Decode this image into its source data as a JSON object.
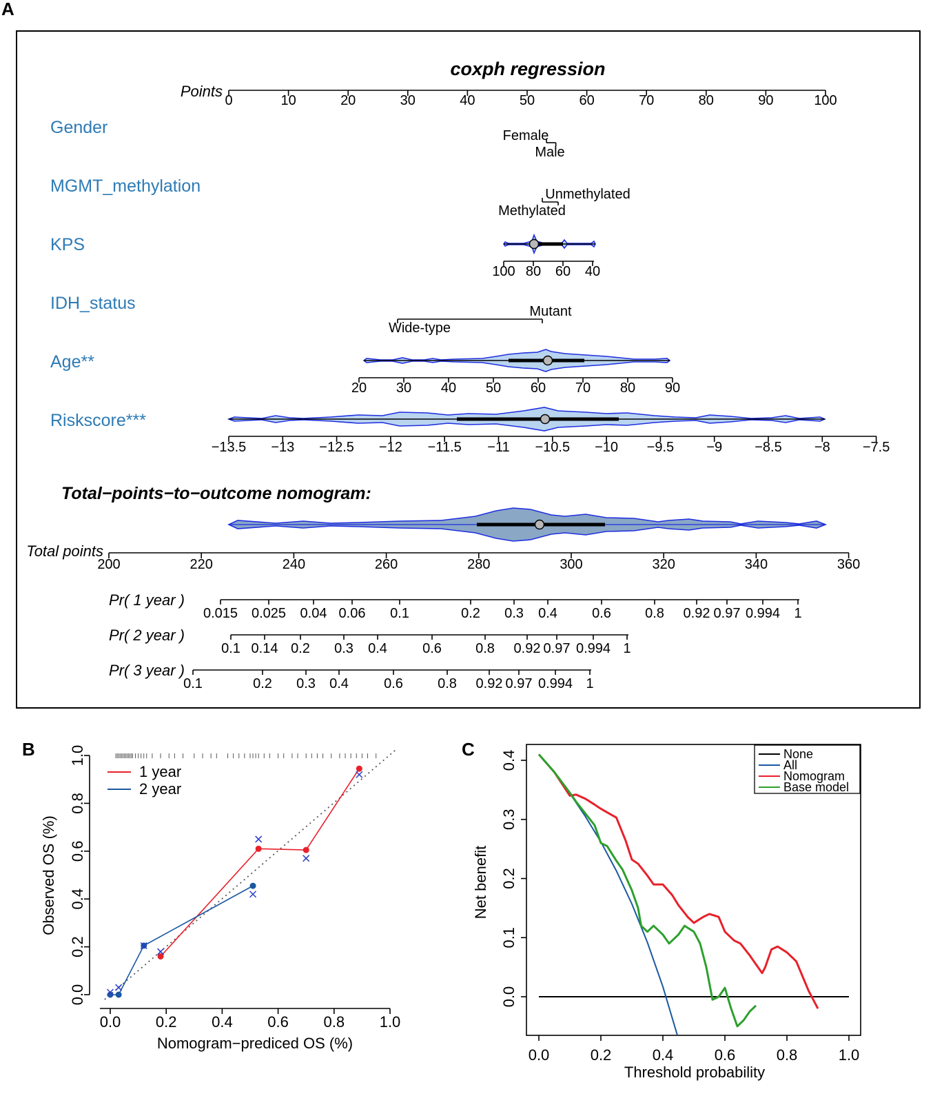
{
  "chart_data": [
    {
      "panel": "A",
      "type": "nomogram",
      "title": "coxph regression",
      "points_label": "Points",
      "points_ticks": [
        0,
        10,
        20,
        30,
        40,
        50,
        60,
        70,
        80,
        90,
        100
      ],
      "variables": [
        {
          "label": "Gender",
          "levels": [
            {
              "name": "Female",
              "points": 50.0
            },
            {
              "name": "Male",
              "points": 52.5
            }
          ]
        },
        {
          "label": "MGMT_methylation",
          "levels": [
            {
              "name": "Unmethylated",
              "points": 55.5
            },
            {
              "name": "Methylated",
              "points": 52.0
            }
          ]
        },
        {
          "label": "KPS",
          "ticks": [
            {
              "value": "100",
              "points": 46
            },
            {
              "value": "80",
              "points": 51
            },
            {
              "value": "60",
              "points": 56
            },
            {
              "value": "40",
              "points": 61
            }
          ]
        },
        {
          "label": "IDH_status",
          "levels": [
            {
              "name": "Mutant",
              "points": 52.5
            },
            {
              "name": "Wide-type",
              "points": 28.5
            }
          ]
        },
        {
          "label": "Age**",
          "ticks": [
            {
              "value": "20",
              "points": 22.5
            },
            {
              "value": "30",
              "points": 30
            },
            {
              "value": "40",
              "points": 37.5
            },
            {
              "value": "50",
              "points": 45
            },
            {
              "value": "60",
              "points": 52.5
            },
            {
              "value": "70",
              "points": 60
            },
            {
              "value": "80",
              "points": 67.5
            },
            {
              "value": "90",
              "points": 75
            }
          ]
        },
        {
          "label": "Riskscore***",
          "ticks": [
            "−13.5",
            "−13",
            "−12.5",
            "−12",
            "−11.5",
            "−11",
            "−10.5",
            "−10",
            "−9.5",
            "−9",
            "−8.5",
            "−8",
            "−7.5"
          ]
        }
      ],
      "total_section_title": "Total−points−to−outcome nomogram:",
      "total_points_label": "Total points",
      "total_points_ticks": [
        200,
        220,
        240,
        260,
        280,
        300,
        320,
        340,
        360
      ],
      "probability_axes": [
        {
          "label": "Pr( 1 year )",
          "ticks": [
            "0.015",
            "0.025",
            "0.04",
            "0.06",
            "0.1",
            "0.2",
            "0.3",
            "0.4",
            "0.6",
            "0.8",
            "0.92",
            "0.97",
            "0.994",
            "1"
          ]
        },
        {
          "label": "Pr( 2 year )",
          "ticks": [
            "0.1",
            "0.14",
            "0.2",
            "0.3",
            "0.4",
            "0.6",
            "0.8",
            "0.92",
            "0.97",
            "0.994",
            "1"
          ]
        },
        {
          "label": "Pr( 3 year )",
          "ticks": [
            "0.1",
            "0.2",
            "0.3",
            "0.4",
            "0.6",
            "0.8",
            "0.92",
            "0.97",
            "0.994",
            "1"
          ]
        }
      ]
    },
    {
      "panel": "B",
      "type": "line",
      "title": "",
      "xlabel": "Nomogram−prediced OS (%)",
      "ylabel": "Observed OS (%)",
      "xlim": [
        0,
        1.0
      ],
      "ylim": [
        0,
        1.0
      ],
      "xticks": [
        "0.0",
        "0.2",
        "0.4",
        "0.6",
        "0.8",
        "1.0"
      ],
      "yticks": [
        "0.0",
        "0.2",
        "0.4",
        "0.6",
        "0.8",
        "1.0"
      ],
      "series": [
        {
          "name": "1 year",
          "color": "#e8202a",
          "x": [
            0.18,
            0.53,
            0.7,
            0.89
          ],
          "y": [
            0.16,
            0.61,
            0.605,
            0.945
          ],
          "corrected_x": [
            0.18,
            0.53,
            0.7,
            0.89
          ],
          "corrected_y": [
            0.18,
            0.65,
            0.57,
            0.92
          ]
        },
        {
          "name": "2 year",
          "color": "#1a58a0",
          "x": [
            0.0,
            0.03,
            0.12,
            0.51
          ],
          "y": [
            0.0,
            0.0,
            0.205,
            0.455
          ],
          "corrected_x": [
            0.0,
            0.03,
            0.12,
            0.51
          ],
          "corrected_y": [
            0.01,
            0.03,
            0.205,
            0.42
          ]
        }
      ],
      "reference": "diagonal dotted line"
    },
    {
      "panel": "C",
      "type": "line",
      "title": "",
      "xlabel": "Threshold probability",
      "ylabel": "Net benefit",
      "xlim": [
        0,
        1.0
      ],
      "ylim": [
        -0.07,
        0.42
      ],
      "xticks": [
        "0.0",
        "0.2",
        "0.4",
        "0.6",
        "0.8",
        "1.0"
      ],
      "yticks": [
        "0.0",
        "0.1",
        "0.2",
        "0.3",
        "0.4"
      ],
      "legend": [
        "None",
        "All",
        "Nomogram",
        "Base model"
      ],
      "series": [
        {
          "name": "None",
          "color": "#000000",
          "x": [
            0.0,
            1.0
          ],
          "y": [
            0.0,
            0.0
          ]
        },
        {
          "name": "All",
          "color": "#1a58a0",
          "x": [
            0.0,
            0.05,
            0.1,
            0.15,
            0.2,
            0.25,
            0.3,
            0.35,
            0.4,
            0.45
          ],
          "y": [
            0.41,
            0.379,
            0.344,
            0.305,
            0.262,
            0.213,
            0.157,
            0.092,
            0.017,
            -0.071
          ]
        },
        {
          "name": "Nomogram",
          "color": "#e8202a",
          "x": [
            0.0,
            0.05,
            0.1,
            0.12,
            0.15,
            0.18,
            0.2,
            0.25,
            0.28,
            0.3,
            0.32,
            0.35,
            0.37,
            0.4,
            0.43,
            0.45,
            0.48,
            0.5,
            0.53,
            0.55,
            0.58,
            0.6,
            0.63,
            0.65,
            0.68,
            0.7,
            0.72,
            0.73,
            0.75,
            0.77,
            0.8,
            0.83,
            0.85,
            0.87,
            0.9
          ],
          "y": [
            0.41,
            0.38,
            0.34,
            0.342,
            0.335,
            0.325,
            0.318,
            0.303,
            0.264,
            0.232,
            0.225,
            0.205,
            0.19,
            0.19,
            0.172,
            0.155,
            0.135,
            0.125,
            0.135,
            0.14,
            0.135,
            0.11,
            0.095,
            0.09,
            0.07,
            0.055,
            0.04,
            0.05,
            0.08,
            0.085,
            0.075,
            0.06,
            0.035,
            0.01,
            -0.02
          ]
        },
        {
          "name": "Base model",
          "color": "#2ca02c",
          "x": [
            0.0,
            0.05,
            0.1,
            0.12,
            0.15,
            0.18,
            0.2,
            0.22,
            0.25,
            0.27,
            0.3,
            0.32,
            0.33,
            0.35,
            0.37,
            0.4,
            0.42,
            0.45,
            0.47,
            0.5,
            0.52,
            0.54,
            0.56,
            0.58,
            0.6,
            0.62,
            0.64,
            0.66,
            0.68,
            0.7
          ],
          "y": [
            0.41,
            0.38,
            0.345,
            0.33,
            0.31,
            0.29,
            0.26,
            0.255,
            0.23,
            0.215,
            0.18,
            0.15,
            0.12,
            0.11,
            0.12,
            0.105,
            0.09,
            0.105,
            0.12,
            0.11,
            0.09,
            0.05,
            -0.005,
            0.0,
            0.015,
            -0.02,
            -0.05,
            -0.04,
            -0.025,
            -0.015
          ]
        }
      ]
    }
  ],
  "panel_labels": {
    "a": "A",
    "b": "B",
    "c": "C"
  }
}
